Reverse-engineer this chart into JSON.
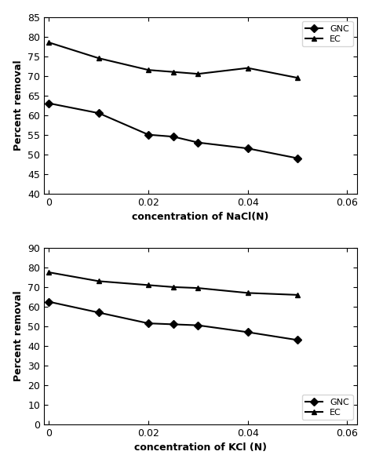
{
  "nacl": {
    "x": [
      0,
      0.01,
      0.02,
      0.025,
      0.03,
      0.04,
      0.05
    ],
    "gnc_y": [
      63.0,
      60.5,
      55.0,
      54.5,
      53.0,
      51.5,
      49.0
    ],
    "ec_y": [
      78.5,
      74.5,
      71.5,
      71.0,
      70.5,
      72.0,
      69.5
    ],
    "xlabel": "concentration of NaCl(N)",
    "ylim": [
      40,
      85
    ],
    "yticks": [
      40,
      45,
      50,
      55,
      60,
      65,
      70,
      75,
      80,
      85
    ]
  },
  "kcl": {
    "x": [
      0,
      0.01,
      0.02,
      0.025,
      0.03,
      0.04,
      0.05
    ],
    "gnc_y": [
      62.5,
      57.0,
      51.5,
      51.0,
      50.5,
      47.0,
      43.0
    ],
    "ec_y": [
      77.5,
      73.0,
      71.0,
      70.0,
      69.5,
      67.0,
      66.0
    ],
    "xlabel": "concentration of KCl (N)",
    "ylim": [
      0,
      90
    ],
    "yticks": [
      0,
      10,
      20,
      30,
      40,
      50,
      60,
      70,
      80,
      90
    ]
  },
  "line_color": "#000000",
  "gnc_marker": "D",
  "ec_marker": "^",
  "marker_size": 5,
  "linewidth": 1.5,
  "ylabel": "Percent removal",
  "legend_gnc": "GNC",
  "legend_ec": "EC",
  "xlim": [
    -0.001,
    0.062
  ],
  "xticks": [
    0,
    0.02,
    0.04,
    0.06
  ],
  "xticklabels": [
    "0",
    "0.02",
    "0.04",
    "0.06"
  ]
}
